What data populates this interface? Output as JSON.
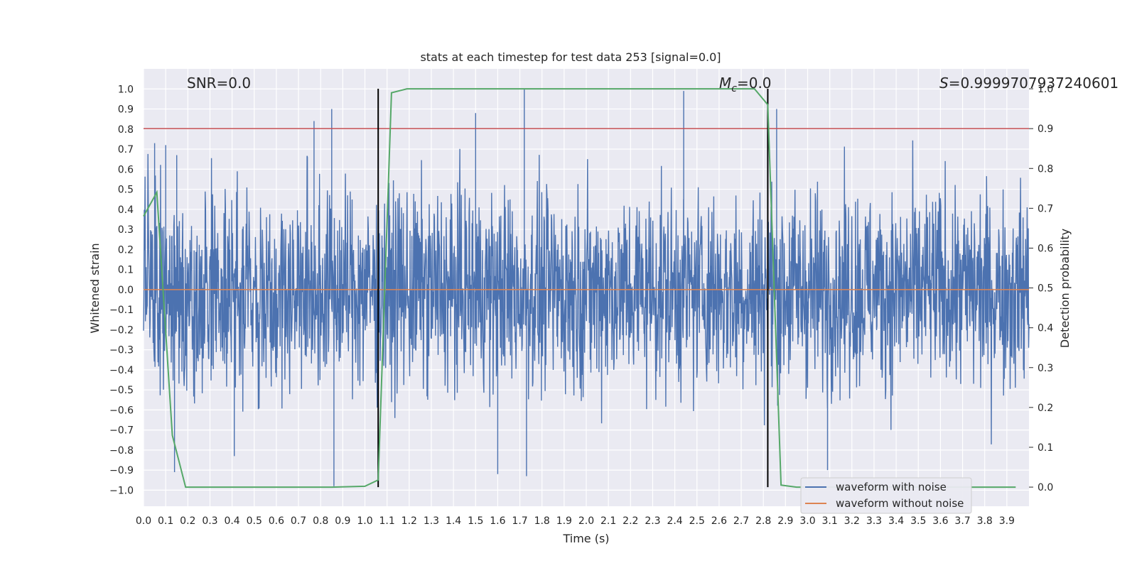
{
  "chart_data": {
    "type": "line",
    "title": "stats at each timestep for test data 253 [signal=0.0]",
    "xlabel": "Time (s)",
    "ylabel": "Whitened strain",
    "y2label": "Detection probability",
    "xlim": [
      0.0,
      4.0
    ],
    "ylim": [
      -1.08,
      1.1
    ],
    "y2lim": [
      -0.048,
      1.05
    ],
    "x_ticks": [
      "0.0",
      "0.1",
      "0.2",
      "0.3",
      "0.4",
      "0.5",
      "0.6",
      "0.7",
      "0.8",
      "0.9",
      "1.0",
      "1.1",
      "1.2",
      "1.3",
      "1.4",
      "1.5",
      "1.6",
      "1.7",
      "1.8",
      "1.9",
      "2.0",
      "2.1",
      "2.2",
      "2.3",
      "2.4",
      "2.5",
      "2.6",
      "2.7",
      "2.8",
      "2.9",
      "3.0",
      "3.1",
      "3.2",
      "3.3",
      "3.4",
      "3.5",
      "3.6",
      "3.7",
      "3.8",
      "3.9"
    ],
    "y_ticks": [
      "−1.0",
      "−0.9",
      "−0.8",
      "−0.7",
      "−0.6",
      "−0.5",
      "−0.4",
      "−0.3",
      "−0.2",
      "−0.1",
      "0.0",
      "0.1",
      "0.2",
      "0.3",
      "0.4",
      "0.5",
      "0.6",
      "0.7",
      "0.8",
      "0.9",
      "1.0"
    ],
    "y2_ticks": [
      "0.0",
      "0.1",
      "0.2",
      "0.3",
      "0.4",
      "0.5",
      "0.6",
      "0.7",
      "0.8",
      "0.9",
      "1.0"
    ],
    "annotations": {
      "snr": "SNR=0.0",
      "mc_symbol": "M",
      "mc_sub": "c",
      "mc_value": "=0.0",
      "s_symbol": "S",
      "s_value": "=0.9999707937240601"
    },
    "legend": {
      "placement": "lower-right",
      "entries": [
        {
          "label": "waveform with noise",
          "color": "#4c72b0"
        },
        {
          "label": "waveform without noise",
          "color": "#dd8452"
        }
      ]
    },
    "threshold_line": {
      "y2": 0.9,
      "color": "#c44e52"
    },
    "vertical_markers": {
      "x": [
        1.06,
        2.82
      ],
      "color": "#000000"
    },
    "noise_series": {
      "name": "waveform with noise",
      "color": "#4c72b0",
      "amplitude_typical": 0.45,
      "peaks": [
        {
          "x": 0.05,
          "y": 0.73
        },
        {
          "x": 0.1,
          "y": 0.72
        },
        {
          "x": 0.15,
          "y": 0.67
        },
        {
          "x": 0.77,
          "y": 0.84
        },
        {
          "x": 0.85,
          "y": 0.9
        },
        {
          "x": 1.72,
          "y": 1.0
        },
        {
          "x": 2.44,
          "y": 0.99
        },
        {
          "x": 2.86,
          "y": 0.9
        },
        {
          "x": 1.5,
          "y": 0.88
        },
        {
          "x": 0.86,
          "y": -0.98
        },
        {
          "x": 1.73,
          "y": -0.93
        },
        {
          "x": 3.09,
          "y": -0.9
        },
        {
          "x": 0.14,
          "y": -0.91
        },
        {
          "x": 0.41,
          "y": -0.83
        },
        {
          "x": 1.6,
          "y": -0.92
        }
      ]
    },
    "clean_series": {
      "name": "waveform without noise",
      "color": "#dd8452",
      "y": 0.0
    },
    "probability_series": {
      "name": "Detection probability",
      "color": "#55a868",
      "x": [
        0.0,
        0.06,
        0.13,
        0.19,
        0.25,
        0.6,
        0.85,
        1.0,
        1.06,
        1.12,
        1.19,
        1.3,
        2.5,
        2.76,
        2.82,
        2.88,
        2.95,
        3.1,
        3.6,
        3.94
      ],
      "y": [
        0.68,
        0.74,
        0.13,
        0.0,
        0.0,
        0.0,
        0.0,
        0.002,
        0.018,
        0.99,
        1.0,
        1.0,
        1.0,
        1.0,
        0.96,
        0.005,
        0.0,
        0.0,
        0.0,
        0.0
      ]
    }
  }
}
